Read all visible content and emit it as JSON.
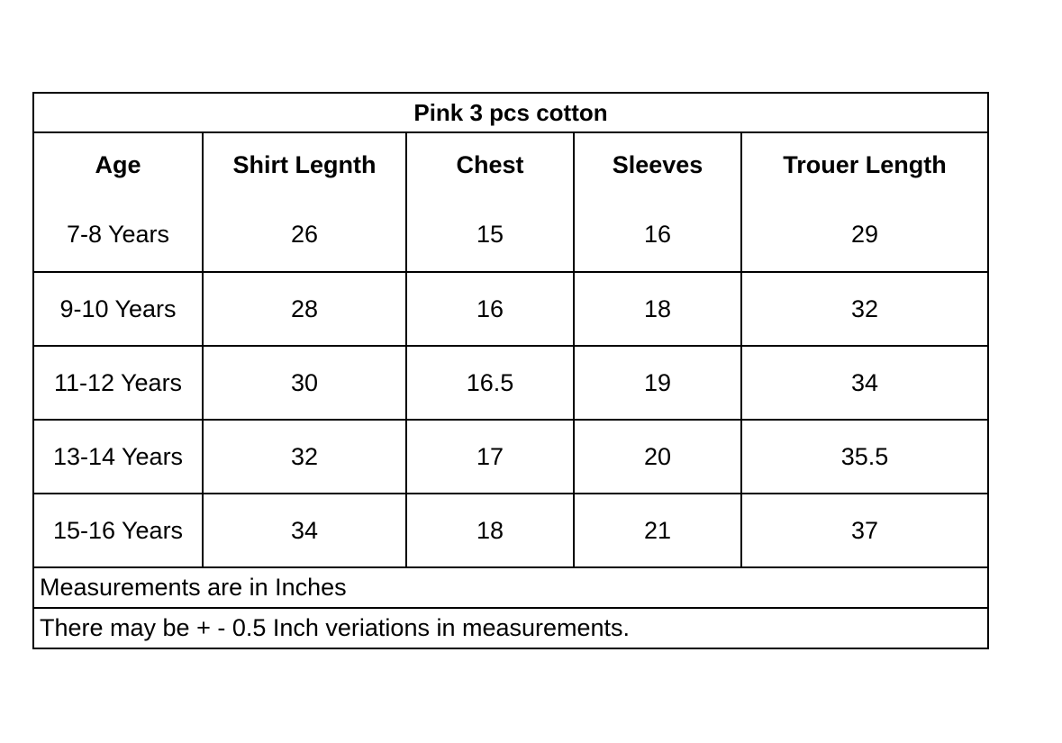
{
  "title": "Pink 3 pcs cotton",
  "columns": [
    "Age",
    "Shirt Legnth",
    "Chest",
    "Sleeves",
    "Trouer Length"
  ],
  "rows": [
    [
      "7-8 Years",
      "26",
      "15",
      "16",
      "29"
    ],
    [
      "9-10 Years",
      "28",
      "16",
      "18",
      "32"
    ],
    [
      "11-12 Years",
      "30",
      "16.5",
      "19",
      "34"
    ],
    [
      "13-14 Years",
      "32",
      "17",
      "20",
      "35.5"
    ],
    [
      "15-16 Years",
      "34",
      "18",
      "21",
      "37"
    ]
  ],
  "notes": [
    "Measurements are in Inches",
    "There may be + - 0.5 Inch veriations in measurements."
  ]
}
